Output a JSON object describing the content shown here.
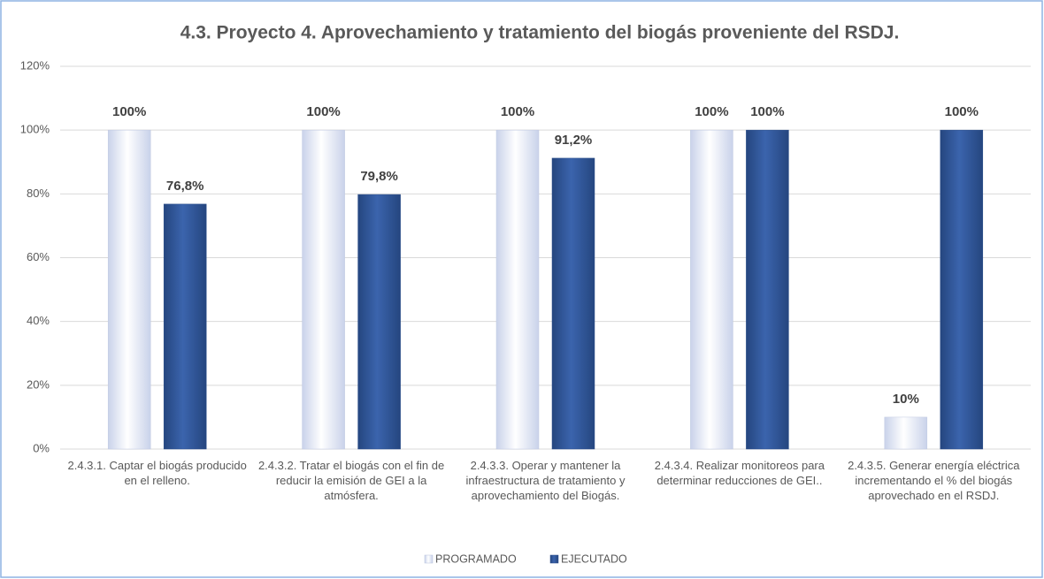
{
  "chart_data": {
    "type": "bar",
    "title": "4.3. Proyecto 4. Aprovechamiento y tratamiento del biogás proveniente del RSDJ.",
    "categories": [
      "2.4.3.1. Captar el biogás producido en el relleno.",
      "2.4.3.2. Tratar el biogás con el fin de reducir la emisión de GEI a la atmósfera.",
      "2.4.3.3. Operar y mantener la infraestructura de tratamiento y aprovechamiento del Biogás.",
      "2.4.3.4. Realizar monitoreos para determinar reducciones de GEI..",
      "2.4.3.5. Generar energía eléctrica incrementando el % del biogás aprovechado en el RSDJ."
    ],
    "series": [
      {
        "name": "PROGRAMADO",
        "color": "#dce3f3",
        "values": [
          100,
          100,
          100,
          100,
          10
        ],
        "value_labels": [
          "100%",
          "100%",
          "100%",
          "100%",
          "10%"
        ]
      },
      {
        "name": "EJECUTADO",
        "color": "#2f5597",
        "values": [
          76.8,
          79.8,
          91.2,
          100,
          100
        ],
        "value_labels": [
          "76,8%",
          "79,8%",
          "91,2%",
          "100%",
          "100%"
        ]
      }
    ],
    "ylim": [
      0,
      120
    ],
    "yticks": [
      {
        "value": 0,
        "label": "0%"
      },
      {
        "value": 20,
        "label": "20%"
      },
      {
        "value": 40,
        "label": "40%"
      },
      {
        "value": 60,
        "label": "60%"
      },
      {
        "value": 80,
        "label": "80%"
      },
      {
        "value": 100,
        "label": "100%"
      },
      {
        "value": 120,
        "label": "120%"
      }
    ],
    "grid": true,
    "legend": "bottom"
  }
}
